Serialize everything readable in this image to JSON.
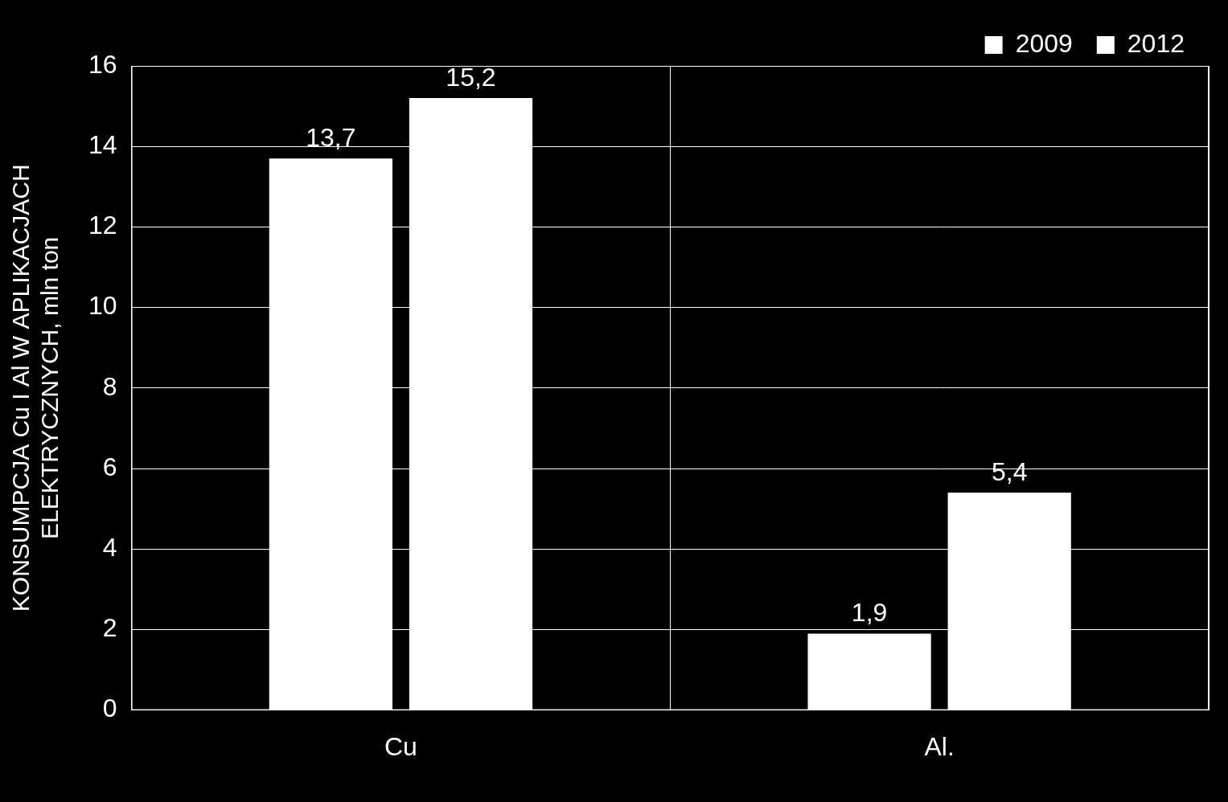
{
  "chart_data": {
    "type": "bar",
    "y_label": [
      "KONSUMPCJA Cu I Al W APLIKACJACH",
      "ELEKTRYCZNYCH, mln ton"
    ],
    "categories": [
      "Cu",
      "Al."
    ],
    "series": [
      {
        "name": "2009",
        "color": "#ffffff",
        "values": [
          13.7,
          1.9
        ],
        "value_labels": [
          "13,7",
          "1,9"
        ]
      },
      {
        "name": "2012",
        "color": "#ffffff",
        "values": [
          15.2,
          5.4
        ],
        "value_labels": [
          "15,2",
          "5,4"
        ]
      }
    ],
    "ylim": [
      0,
      16
    ],
    "yticks": [
      0,
      2,
      4,
      6,
      8,
      10,
      12,
      14,
      16
    ],
    "grid": true,
    "legend": "upper right",
    "data_labels": true
  }
}
